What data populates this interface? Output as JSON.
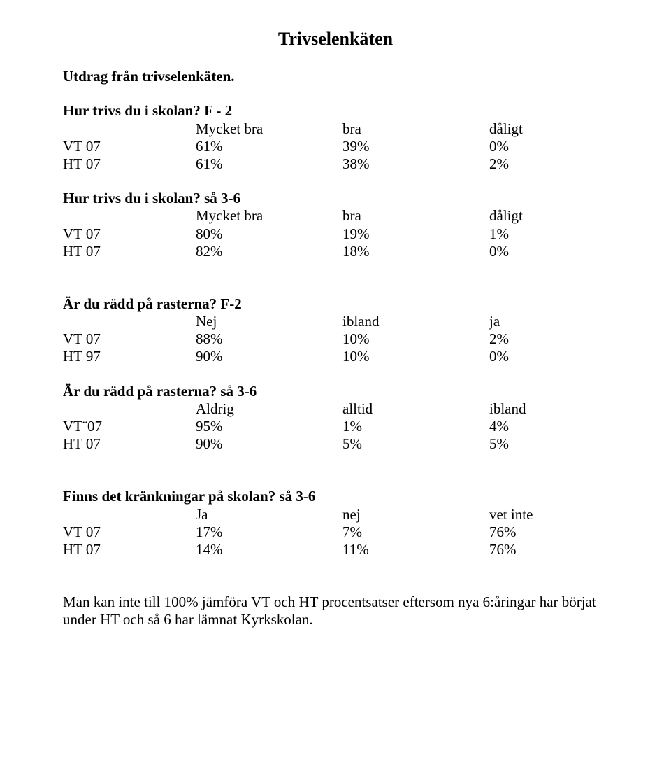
{
  "title": "Trivselenkäten",
  "intro": "Utdrag från trivselenkäten.",
  "sections": [
    {
      "heading": "Hur trivs du i skolan? F - 2",
      "cols": [
        "Mycket bra",
        "bra",
        "dåligt"
      ],
      "rows": [
        {
          "label": "VT 07",
          "v": [
            "61%",
            "39%",
            "0%"
          ]
        },
        {
          "label": "HT 07",
          "v": [
            "61%",
            "38%",
            "2%"
          ]
        }
      ]
    },
    {
      "heading": "Hur trivs du i skolan? så 3-6",
      "cols": [
        "Mycket bra",
        "bra",
        "dåligt"
      ],
      "rows": [
        {
          "label": "VT 07",
          "v": [
            "80%",
            "19%",
            "1%"
          ]
        },
        {
          "label": "HT 07",
          "v": [
            "82%",
            "18%",
            "0%"
          ]
        }
      ]
    },
    {
      "heading": "Är du rädd på rasterna? F-2",
      "cols": [
        "Nej",
        "ibland",
        "ja"
      ],
      "rows": [
        {
          "label": "VT 07",
          "v": [
            "88%",
            "10%",
            "2%"
          ]
        },
        {
          "label": "HT 97",
          "v": [
            "90%",
            "10%",
            "0%"
          ]
        }
      ]
    },
    {
      "heading": "Är du rädd på rasterna? så 3-6",
      "cols": [
        "Aldrig",
        "alltid",
        "ibland"
      ],
      "rows": [
        {
          "label": "VT¨07",
          "v": [
            "95%",
            "1%",
            "4%"
          ]
        },
        {
          "label": "HT 07",
          "v": [
            "90%",
            "5%",
            "5%"
          ]
        }
      ]
    },
    {
      "heading": "Finns det kränkningar på skolan? så 3-6",
      "cols": [
        "Ja",
        "nej",
        "vet inte"
      ],
      "rows": [
        {
          "label": "VT 07",
          "v": [
            "17%",
            "7%",
            "76%"
          ]
        },
        {
          "label": "HT 07",
          "v": [
            "14%",
            "11%",
            "76%"
          ]
        }
      ]
    }
  ],
  "footnote": "Man kan inte till 100% jämföra VT och HT procentsatser eftersom nya 6:åringar har börjat under HT och så 6 har lämnat Kyrkskolan."
}
